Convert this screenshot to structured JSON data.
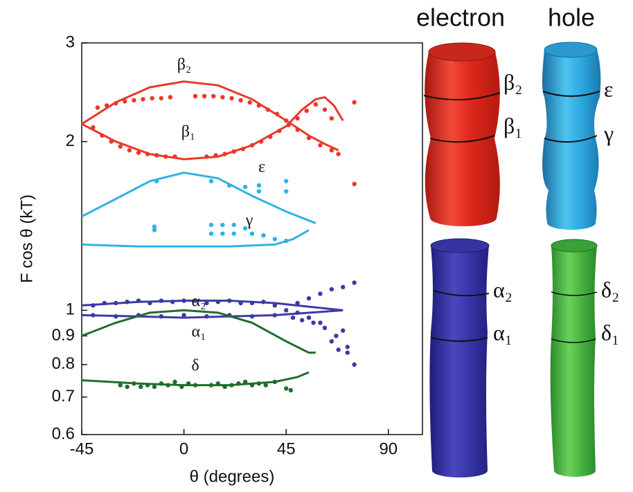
{
  "chart_data": {
    "type": "scatter",
    "xlabel": "θ (degrees)",
    "ylabel": "F cos θ (kT)",
    "xlim": [
      -45,
      105
    ],
    "xticks": [
      -45,
      0,
      45,
      90
    ],
    "ylim": [
      0.6,
      3
    ],
    "yticks": [
      3,
      2,
      1,
      0.9,
      0.8,
      0.7,
      0.6
    ],
    "ylog": true,
    "annotations": [
      "β₂",
      "β₁",
      "ε",
      "γ",
      "α₂",
      "α₁",
      "δ"
    ],
    "series": [
      {
        "mode": "markers",
        "color": "#e9382b",
        "x": [
          -38,
          -34,
          -30,
          -26,
          -22,
          -18,
          -14,
          -10,
          -6,
          5,
          9,
          13,
          17,
          21,
          25,
          29,
          33,
          37,
          41,
          45,
          50,
          55,
          60,
          65,
          68
        ],
        "values": [
          2.3,
          2.32,
          2.34,
          2.36,
          2.37,
          2.38,
          2.39,
          2.39,
          2.4,
          2.41,
          2.41,
          2.41,
          2.4,
          2.39,
          2.37,
          2.35,
          2.32,
          2.28,
          2.24,
          2.18,
          2.1,
          2.03,
          1.97,
          1.93,
          1.9
        ]
      },
      {
        "mode": "markers",
        "color": "#e9382b",
        "x": [
          -40,
          -36,
          -32,
          -28,
          -24,
          -20,
          -16,
          -12,
          -8,
          -4,
          10,
          14,
          18,
          22,
          26,
          30,
          34,
          38,
          42,
          46,
          50,
          54,
          58,
          62,
          65,
          75,
          75
        ],
        "values": [
          2.12,
          2.05,
          2.0,
          1.96,
          1.93,
          1.91,
          1.9,
          1.89,
          1.88,
          1.88,
          1.88,
          1.89,
          1.9,
          1.92,
          1.94,
          1.97,
          2.0,
          2.04,
          2.09,
          2.14,
          2.2,
          2.27,
          2.33,
          2.28,
          2.2,
          2.35,
          1.68
        ]
      },
      {
        "mode": "line",
        "color": "#e9382b",
        "x": [
          -45,
          -30,
          -15,
          0,
          15,
          30,
          45,
          55,
          62,
          68
        ],
        "values": [
          2.15,
          2.35,
          2.5,
          2.56,
          2.52,
          2.38,
          2.18,
          2.05,
          1.98,
          1.93
        ]
      },
      {
        "mode": "line",
        "color": "#e9382b",
        "x": [
          -45,
          -30,
          -15,
          0,
          15,
          30,
          45,
          52,
          58,
          62,
          66,
          70
        ],
        "values": [
          2.15,
          2.0,
          1.9,
          1.86,
          1.88,
          1.97,
          2.13,
          2.28,
          2.38,
          2.4,
          2.32,
          2.18
        ]
      },
      {
        "mode": "markers",
        "color": "#2fb2e6",
        "x": [
          -12,
          12,
          20,
          27,
          33,
          33,
          45,
          45
        ],
        "values": [
          1.7,
          1.7,
          1.67,
          1.66,
          1.67,
          1.63,
          1.7,
          1.63
        ]
      },
      {
        "mode": "markers",
        "color": "#2fb2e6",
        "x": [
          -13,
          -13,
          12,
          12,
          17,
          17,
          22,
          22,
          27,
          30,
          35,
          40,
          45
        ],
        "values": [
          1.41,
          1.39,
          1.42,
          1.37,
          1.42,
          1.37,
          1.42,
          1.37,
          1.4,
          1.37,
          1.36,
          1.34,
          1.33
        ]
      },
      {
        "mode": "line",
        "color": "#2fb2e6",
        "x": [
          -45,
          -30,
          -15,
          0,
          15,
          30,
          45,
          58
        ],
        "values": [
          1.47,
          1.58,
          1.7,
          1.76,
          1.72,
          1.6,
          1.5,
          1.43
        ]
      },
      {
        "mode": "line",
        "color": "#2fb2e6",
        "x": [
          -45,
          -20,
          0,
          20,
          40,
          48,
          55
        ],
        "values": [
          1.31,
          1.3,
          1.3,
          1.3,
          1.31,
          1.34,
          1.39
        ]
      },
      {
        "mode": "markers",
        "color": "#3b3aa5",
        "x": [
          -40,
          -35,
          -30,
          -25,
          -20,
          -15,
          -10,
          -5,
          0,
          5,
          10,
          15,
          20,
          25,
          30,
          35,
          40,
          -40,
          -30,
          -20,
          -10,
          0,
          10,
          20,
          30,
          40,
          45,
          48,
          50,
          52,
          55,
          57,
          60,
          62,
          65,
          67,
          70,
          72,
          75,
          50,
          55,
          60,
          65,
          68,
          70,
          72,
          75
        ],
        "values": [
          1.02,
          1.03,
          1.03,
          1.035,
          1.04,
          1.03,
          1.04,
          1.035,
          1.04,
          1.04,
          1.03,
          1.035,
          1.04,
          1.03,
          1.03,
          1.035,
          1.02,
          0.98,
          0.975,
          0.98,
          0.975,
          0.98,
          0.975,
          0.98,
          0.975,
          0.98,
          1.0,
          0.97,
          1.03,
          0.96,
          1.05,
          0.95,
          1.07,
          0.93,
          1.09,
          0.9,
          1.1,
          0.86,
          1.12,
          0.99,
          0.97,
          0.95,
          0.88,
          0.85,
          0.92,
          0.84,
          0.8
        ]
      },
      {
        "mode": "line",
        "color": "#3b3aa5",
        "x": [
          -45,
          -20,
          0,
          20,
          40,
          70
        ],
        "values": [
          1.02,
          1.035,
          1.04,
          1.04,
          1.03,
          1.0
        ]
      },
      {
        "mode": "line",
        "color": "#3b3aa5",
        "x": [
          -45,
          -20,
          0,
          20,
          40,
          70
        ],
        "values": [
          0.98,
          0.975,
          0.97,
          0.975,
          0.98,
          1.0
        ]
      },
      {
        "mode": "line",
        "color": "#1e6e2a",
        "x": [
          -45,
          -30,
          -15,
          0,
          15,
          30,
          45,
          55,
          58
        ],
        "values": [
          0.9,
          0.95,
          0.99,
          1.0,
          0.99,
          0.95,
          0.88,
          0.84,
          0.84
        ]
      },
      {
        "mode": "markers",
        "color": "#1e6e2a",
        "x": [
          -28,
          -25,
          -22,
          -19,
          -16,
          -13,
          -10,
          -7,
          -4,
          -1,
          2,
          5,
          12,
          15,
          18,
          21,
          24,
          27,
          30,
          33,
          36,
          40,
          45,
          47
        ],
        "values": [
          0.735,
          0.73,
          0.74,
          0.73,
          0.735,
          0.73,
          0.74,
          0.735,
          0.745,
          0.73,
          0.74,
          0.735,
          0.735,
          0.74,
          0.73,
          0.735,
          0.74,
          0.745,
          0.735,
          0.74,
          0.735,
          0.745,
          0.725,
          0.72
        ]
      },
      {
        "mode": "line",
        "color": "#1e6e2a",
        "x": [
          -45,
          -20,
          0,
          20,
          40,
          50,
          55
        ],
        "values": [
          0.75,
          0.74,
          0.735,
          0.735,
          0.745,
          0.76,
          0.775
        ]
      }
    ]
  },
  "illustration": {
    "electron": "electron",
    "hole": "hole",
    "labels": [
      "β₂",
      "β₁",
      "ε",
      "γ",
      "α₂",
      "α₁",
      "δ₂",
      "δ₁"
    ]
  }
}
